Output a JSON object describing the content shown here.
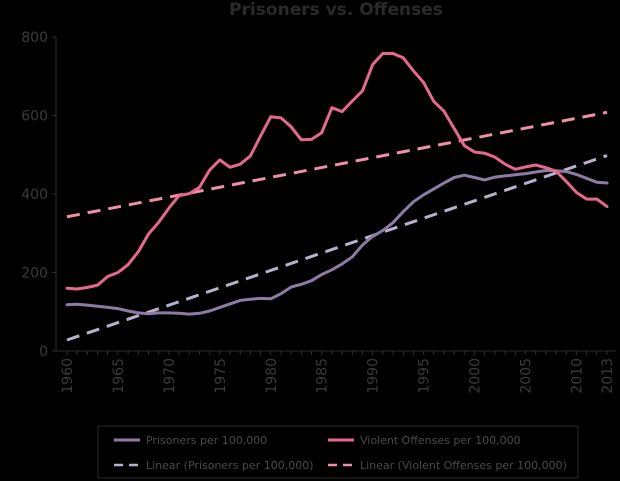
{
  "chart_data": {
    "type": "line",
    "title": "Prisoners vs. Offenses",
    "xlabel": "",
    "ylabel": "",
    "ylim": [
      0,
      800
    ],
    "yticks": [
      "0",
      "200",
      "400",
      "600",
      "800"
    ],
    "x": [
      1960,
      1961,
      1962,
      1963,
      1964,
      1965,
      1966,
      1967,
      1968,
      1969,
      1970,
      1971,
      1972,
      1973,
      1974,
      1975,
      1976,
      1977,
      1978,
      1979,
      1980,
      1981,
      1982,
      1983,
      1984,
      1985,
      1986,
      1987,
      1988,
      1989,
      1990,
      1991,
      1992,
      1993,
      1994,
      1995,
      1996,
      1997,
      1998,
      1999,
      2000,
      2001,
      2002,
      2003,
      2004,
      2005,
      2006,
      2007,
      2008,
      2009,
      2010,
      2011,
      2012,
      2013
    ],
    "xtick_labels": [
      "1960",
      "1965",
      "1970",
      "1975",
      "1980",
      "1985",
      "1990",
      "1995",
      "2000",
      "2005",
      "2010",
      "2013"
    ],
    "series": [
      {
        "name": "Prisoners per 100,000",
        "color": "#8b7ba5",
        "values": [
          118,
          119,
          117,
          114,
          111,
          108,
          102,
          97,
          95,
          97,
          97,
          96,
          94,
          96,
          102,
          111,
          120,
          129,
          132,
          134,
          133,
          146,
          163,
          170,
          179,
          195,
          207,
          222,
          240,
          270,
          292,
          307,
          327,
          355,
          380,
          398,
          413,
          428,
          442,
          448,
          442,
          436,
          443,
          446,
          449,
          452,
          456,
          460,
          459,
          457,
          450,
          440,
          430,
          428
        ]
      },
      {
        "name": "Violent Offenses per 100,000",
        "color": "#e6688e",
        "values": [
          160,
          158,
          162,
          168,
          190,
          200,
          220,
          253,
          298,
          328,
          364,
          396,
          401,
          417,
          461,
          487,
          468,
          476,
          497,
          548,
          597,
          594,
          571,
          538,
          539,
          556,
          620,
          610,
          637,
          663,
          730,
          758,
          758,
          747,
          714,
          684,
          636,
          611,
          567,
          523,
          507,
          504,
          494,
          476,
          463,
          469,
          474,
          467,
          458,
          432,
          404,
          387,
          387,
          368
        ]
      }
    ],
    "trendlines": [
      {
        "name": "Linear (Prisoners per 100,000)",
        "color": "#b9b0cc",
        "x": [
          1960,
          2013
        ],
        "values": [
          28,
          498
        ]
      },
      {
        "name": "Linear (Violent Offenses per 100,000)",
        "color": "#f08fa9",
        "x": [
          1960,
          2013
        ],
        "values": [
          342,
          608
        ]
      }
    ],
    "legend_position": "bottom",
    "grid": false
  }
}
